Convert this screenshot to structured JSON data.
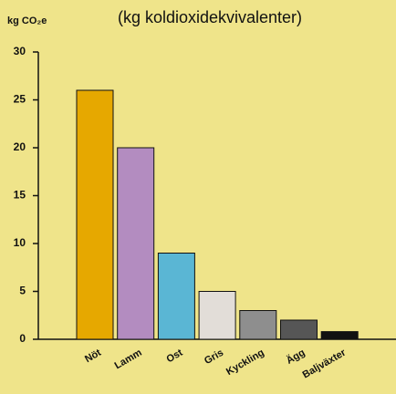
{
  "chart_data": {
    "type": "bar",
    "subtitle": "(kg koldioxidekvivalenter)",
    "y_label": "kg CO₂e",
    "categories": [
      "Nöt",
      "Lamm",
      "Ost",
      "Gris",
      "Kyckling",
      "Ägg",
      "Baljväxter"
    ],
    "values": [
      26,
      20,
      9,
      5,
      3,
      2,
      0.8
    ],
    "colors": [
      "#e6a800",
      "#b38cc0",
      "#5ab6d4",
      "#e2ddd8",
      "#8e8e8e",
      "#565656",
      "#111111"
    ],
    "ylim": [
      0,
      30
    ],
    "yticks": [
      0,
      5,
      10,
      15,
      20,
      25,
      30
    ]
  }
}
